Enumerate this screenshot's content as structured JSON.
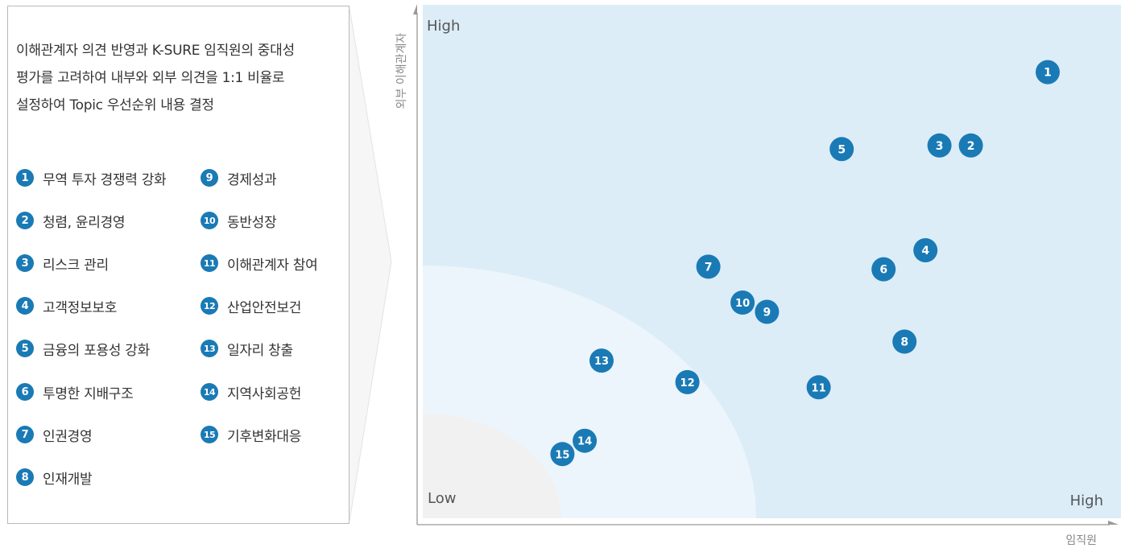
{
  "description": [
    "이해관계자 의견 반영과 K-SURE 임직원의 중대성",
    "평가를 고려하여 내부와 외부 의견을 1:1 비율로",
    "설정하여 Topic 우선순위 내용 결정"
  ],
  "colors": {
    "accent": "#1a7ab5",
    "zone_high": "#dcedf8",
    "zone_mid": "#ecf5fb",
    "zone_low": "#f1f1f2",
    "axis": "#999999"
  },
  "legend": {
    "left": [
      {
        "num": "1",
        "label": "무역 투자 경쟁력 강화"
      },
      {
        "num": "2",
        "label": "청렴, 윤리경영"
      },
      {
        "num": "3",
        "label": "리스크 관리"
      },
      {
        "num": "4",
        "label": "고객정보보호"
      },
      {
        "num": "5",
        "label": "금융의 포용성 강화"
      },
      {
        "num": "6",
        "label": "투명한 지배구조"
      },
      {
        "num": "7",
        "label": "인권경영"
      },
      {
        "num": "8",
        "label": "인재개발"
      }
    ],
    "right": [
      {
        "num": "9",
        "label": "경제성과"
      },
      {
        "num": "10",
        "label": "동반성장"
      },
      {
        "num": "11",
        "label": "이해관계자 참여"
      },
      {
        "num": "12",
        "label": "산업안전보건"
      },
      {
        "num": "13",
        "label": "일자리 창출"
      },
      {
        "num": "14",
        "label": "지역사회공헌"
      },
      {
        "num": "15",
        "label": "기후변화대응"
      }
    ]
  },
  "chart_data": {
    "type": "scatter",
    "xlabel": "임직원",
    "ylabel": "외부 이해관계자",
    "x_high_label": "High",
    "y_high_label": "High",
    "origin_label": "Low",
    "xlim": [
      0,
      100
    ],
    "ylim": [
      0,
      100
    ],
    "points": [
      {
        "id": "1",
        "x": 89.5,
        "y": 86.9
      },
      {
        "id": "2",
        "x": 78.5,
        "y": 72.6
      },
      {
        "id": "3",
        "x": 74.0,
        "y": 72.6
      },
      {
        "id": "4",
        "x": 72.0,
        "y": 52.2
      },
      {
        "id": "5",
        "x": 60.0,
        "y": 71.9
      },
      {
        "id": "6",
        "x": 66.0,
        "y": 48.5
      },
      {
        "id": "7",
        "x": 40.9,
        "y": 49.0
      },
      {
        "id": "8",
        "x": 69.0,
        "y": 34.4
      },
      {
        "id": "9",
        "x": 49.3,
        "y": 40.2
      },
      {
        "id": "10",
        "x": 45.8,
        "y": 42.0
      },
      {
        "id": "11",
        "x": 56.7,
        "y": 25.5
      },
      {
        "id": "12",
        "x": 37.9,
        "y": 26.5
      },
      {
        "id": "13",
        "x": 25.6,
        "y": 30.7
      },
      {
        "id": "14",
        "x": 23.2,
        "y": 15.1
      },
      {
        "id": "15",
        "x": 20.0,
        "y": 12.5
      }
    ]
  }
}
